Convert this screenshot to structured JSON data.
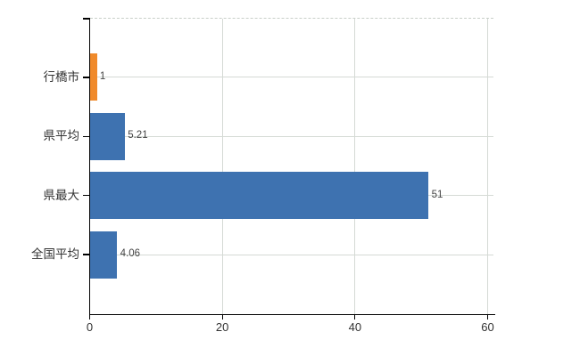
{
  "chart_data": {
    "type": "bar",
    "orientation": "horizontal",
    "title": "",
    "xlabel": "",
    "ylabel": "",
    "categories": [
      "行橋市",
      "県平均",
      "県最大",
      "全国平均"
    ],
    "values": [
      1,
      5.21,
      51,
      4.06
    ],
    "value_labels": [
      "1",
      "5.21",
      "51",
      "4.06"
    ],
    "xlim": [
      0,
      60
    ],
    "xticks": [
      0,
      20,
      40,
      60
    ],
    "xtick_labels": [
      "0",
      "20",
      "40",
      "60"
    ],
    "grid": true,
    "legend_position": "none",
    "highlighted_category": "行橋市",
    "bar_colors": [
      "#f08a2b",
      "#3e72b0",
      "#3e72b0",
      "#3e72b0"
    ]
  },
  "colors": {
    "bar_highlight": "#f08a2b",
    "bar_default": "#3e72b0",
    "gridline": "#d5dad5",
    "axis": "#000000",
    "label_text": "#333333",
    "value_text": "#444444",
    "plot_border_dashed": "#c9cfc9",
    "background": "#ffffff"
  }
}
